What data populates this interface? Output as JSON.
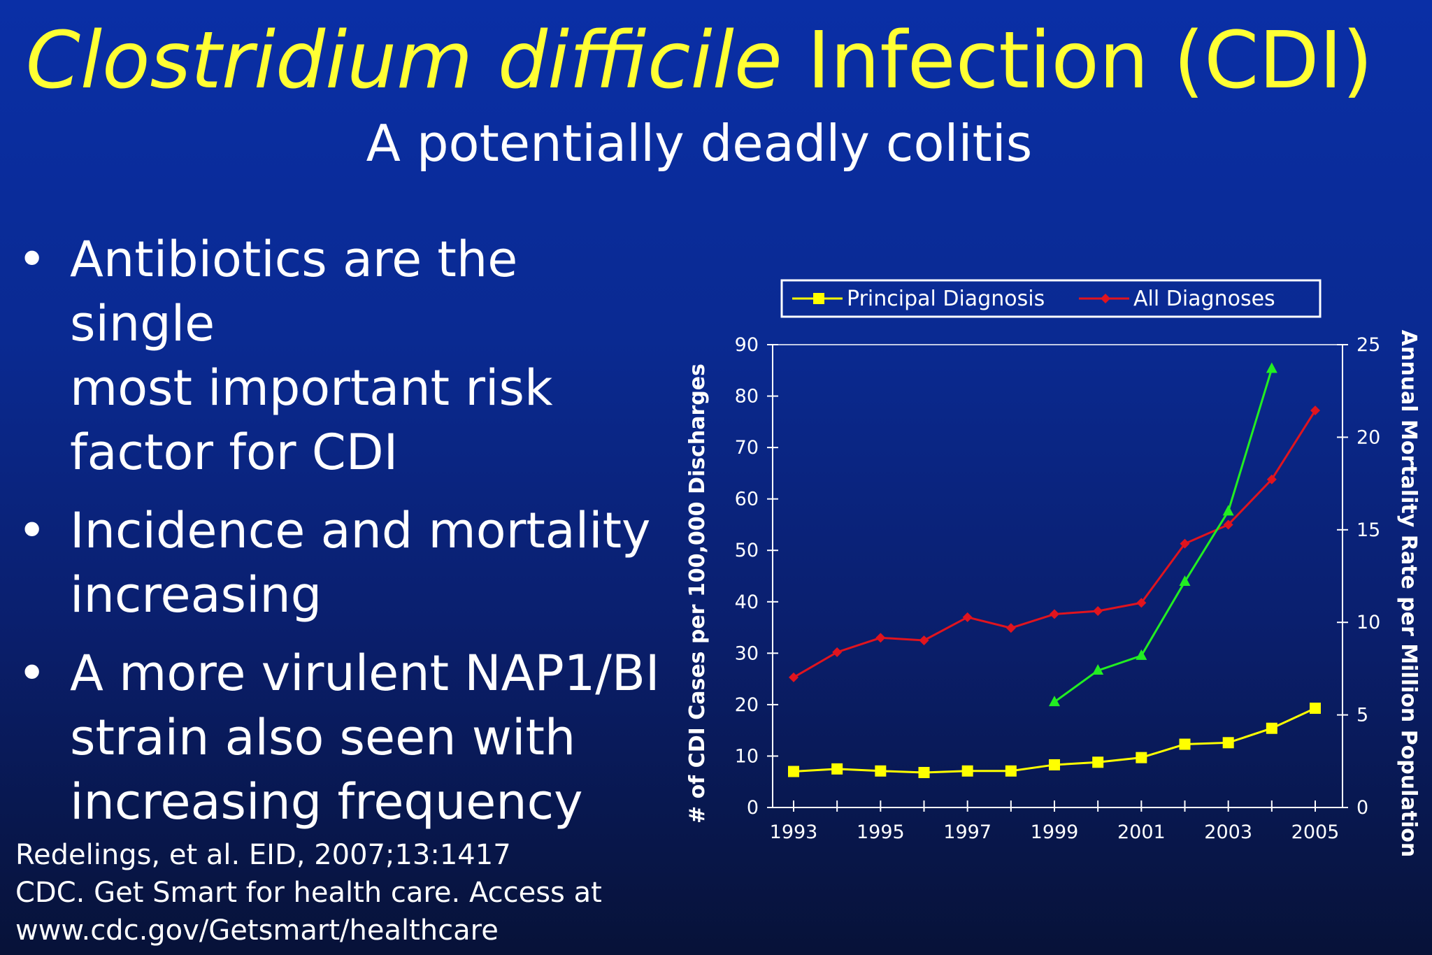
{
  "slide": {
    "title_italic": "Clostridium difficile",
    "title_rest": " Infection (CDI)",
    "subtitle": "A potentially deadly colitis",
    "bullets": [
      {
        "lines": [
          "Antibiotics are the single",
          "most important risk",
          "factor for CDI"
        ]
      },
      {
        "lines": [
          "Incidence and mortality",
          "increasing"
        ]
      },
      {
        "lines": [
          "A more virulent NAP1/BI",
          "strain also seen with",
          "increasing frequency"
        ]
      }
    ],
    "references": [
      "Redelings, et al. EID, 2007;13:1417",
      "CDC. Get Smart for health care.  Access at",
      "www.cdc.gov/Getsmart/healthcare"
    ],
    "bullet_symbol": "•",
    "colors": {
      "title": "#ffff33",
      "text": "#ffffff",
      "background": "#0a2a92"
    }
  },
  "chart_data": {
    "type": "line",
    "x_tick_labels": [
      "1993",
      "1995",
      "1997",
      "1999",
      "2001",
      "2003",
      "2005"
    ],
    "xlim": [
      1993,
      2005
    ],
    "ylabel": "# of CDI Cases per 100,000 Discharges",
    "y_ticks": [
      0,
      10,
      20,
      30,
      40,
      50,
      60,
      70,
      80,
      90
    ],
    "ylim": [
      0,
      90
    ],
    "y2label": "Annual Mortality Rate per Million Population",
    "y2_ticks": [
      0,
      5,
      10,
      15,
      20,
      25
    ],
    "y2lim": [
      0,
      25
    ],
    "legend_position": "top",
    "series": [
      {
        "name": "Principal Diagnosis",
        "axis": "left",
        "color": "#ffff00",
        "marker": "square",
        "x": [
          1993,
          1994,
          1995,
          1996,
          1997,
          1998,
          1999,
          2000,
          2001,
          2002,
          2003,
          2004,
          2005
        ],
        "values": [
          7,
          7.5,
          7.1,
          6.8,
          7.1,
          7.1,
          8.3,
          8.8,
          9.7,
          12.3,
          12.6,
          15.4,
          19.3
        ]
      },
      {
        "name": "All Diagnoses",
        "axis": "left",
        "color": "#e0141e",
        "marker": "diamond",
        "x": [
          1993,
          1994,
          1995,
          1996,
          1997,
          1998,
          1999,
          2000,
          2001,
          2002,
          2003,
          2004,
          2005
        ],
        "values": [
          25.3,
          30.2,
          33,
          32.5,
          37,
          34.9,
          37.6,
          38.2,
          39.8,
          51.3,
          55,
          63.8,
          77.2
        ]
      },
      {
        "axis": "right",
        "color": "#22ee22",
        "marker": "triangle",
        "x": [
          1999,
          2000,
          2001,
          2002,
          2003,
          2004
        ],
        "values": [
          5.7,
          7.4,
          8.2,
          12.2,
          16,
          23.7
        ]
      }
    ],
    "grid": false
  }
}
